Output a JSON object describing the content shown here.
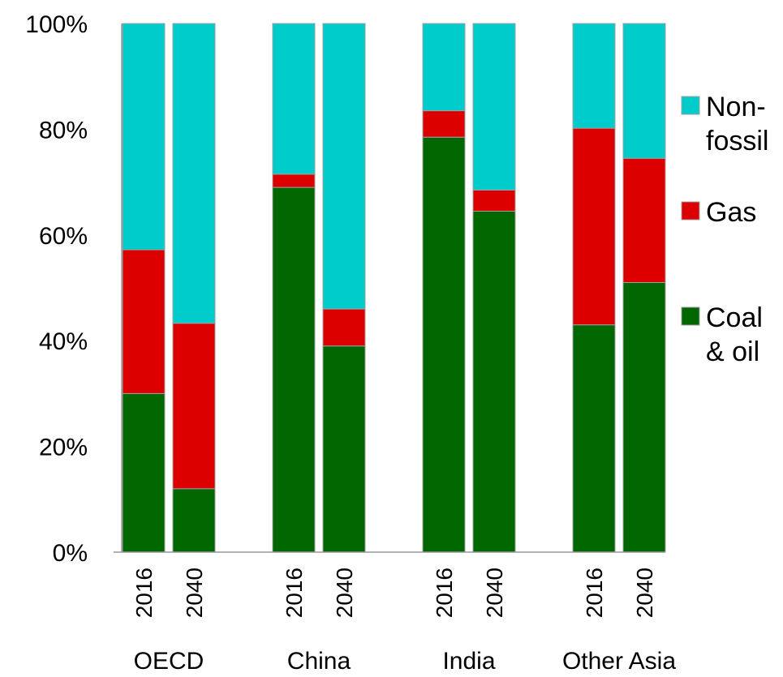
{
  "chart_data": {
    "type": "bar",
    "stacked": true,
    "normalized": true,
    "ylim": [
      0,
      100
    ],
    "yticks": [
      "0%",
      "20%",
      "40%",
      "60%",
      "80%",
      "100%"
    ],
    "groups": [
      {
        "label": "OECD",
        "years": [
          "2016",
          "2040"
        ]
      },
      {
        "label": "China",
        "years": [
          "2016",
          "2040"
        ]
      },
      {
        "label": "India",
        "years": [
          "2016",
          "2040"
        ]
      },
      {
        "label": "Other Asia",
        "years": [
          "2016",
          "2040"
        ]
      }
    ],
    "categories": [
      "OECD 2016",
      "OECD 2040",
      "China 2016",
      "China 2040",
      "India 2016",
      "India 2040",
      "Other Asia 2016",
      "Other Asia 2040"
    ],
    "series": [
      {
        "name": "Coal & oil",
        "color": "#006600",
        "values": [
          30,
          12,
          69,
          39,
          78.5,
          64.5,
          43,
          51
        ]
      },
      {
        "name": "Gas",
        "color": "#dd0000",
        "values": [
          27.2,
          31.3,
          2.5,
          7,
          5,
          4,
          37.2,
          23.5
        ]
      },
      {
        "name": "Non-fossil",
        "color": "#00cccc",
        "values": [
          42.8,
          56.7,
          28.5,
          54,
          16.5,
          31.5,
          19.8,
          25.5
        ]
      }
    ],
    "legend": [
      {
        "lines": [
          "Non-",
          "fossil"
        ],
        "color": "#00cccc"
      },
      {
        "lines": [
          "Gas"
        ],
        "color": "#dd0000"
      },
      {
        "lines": [
          "Coal",
          "& oil"
        ],
        "color": "#006600"
      }
    ],
    "legend_position": "right",
    "grid": false
  }
}
